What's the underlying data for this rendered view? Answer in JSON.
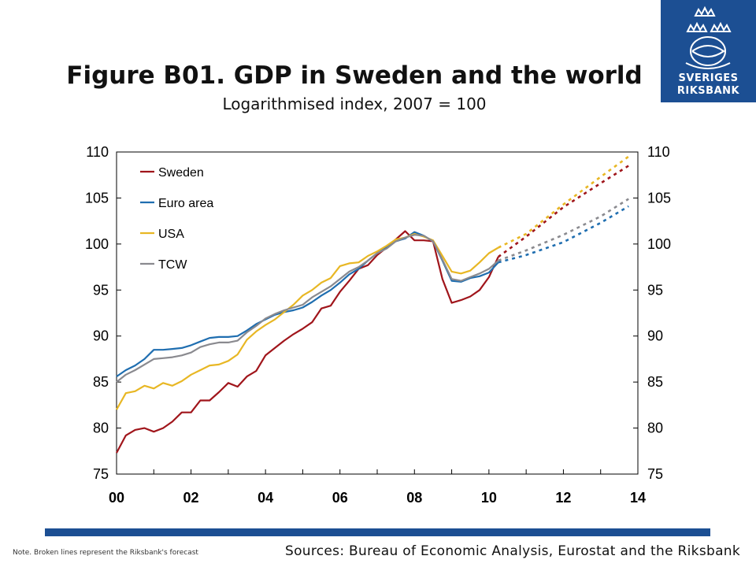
{
  "logo": {
    "line1": "SVERIGES",
    "line2": "RIKSBANK"
  },
  "note": "Note. Broken lines represent the Riksbank's forecast",
  "sources": "Sources: Bureau of Economic Analysis, Eurostat and the Riksbank",
  "colors": {
    "brand": "#1c4f93"
  },
  "chart_data": {
    "type": "line",
    "title": "Figure B01. GDP in Sweden and the world",
    "subtitle": "Logarithmised index, 2007 = 100",
    "xlim": [
      2000,
      2014
    ],
    "ylim": [
      75,
      110
    ],
    "xticks": [
      2000,
      2002,
      2004,
      2006,
      2008,
      2010,
      2012,
      2014
    ],
    "xticklabels": [
      "00",
      "02",
      "04",
      "06",
      "08",
      "10",
      "12",
      "14"
    ],
    "yticks": [
      75,
      80,
      85,
      90,
      95,
      100,
      105,
      110
    ],
    "yticklabels": [
      "75",
      "80",
      "85",
      "90",
      "95",
      "100",
      "105",
      "110"
    ],
    "legend_position": "top-left",
    "grid": false,
    "series": [
      {
        "name": "Sweden",
        "color": "#a0151b",
        "actual": [
          [
            2000,
            77.3
          ],
          [
            2000.25,
            79.2
          ],
          [
            2000.5,
            79.8
          ],
          [
            2000.75,
            80.0
          ],
          [
            2001,
            79.6
          ],
          [
            2001.25,
            80.0
          ],
          [
            2001.5,
            80.7
          ],
          [
            2001.75,
            81.7
          ],
          [
            2002,
            81.7
          ],
          [
            2002.25,
            83.0
          ],
          [
            2002.5,
            83.0
          ],
          [
            2002.75,
            83.9
          ],
          [
            2003,
            84.9
          ],
          [
            2003.25,
            84.5
          ],
          [
            2003.5,
            85.6
          ],
          [
            2003.75,
            86.2
          ],
          [
            2004,
            87.9
          ],
          [
            2004.25,
            88.7
          ],
          [
            2004.5,
            89.5
          ],
          [
            2004.75,
            90.2
          ],
          [
            2005,
            90.8
          ],
          [
            2005.25,
            91.5
          ],
          [
            2005.5,
            93.0
          ],
          [
            2005.75,
            93.3
          ],
          [
            2006,
            94.8
          ],
          [
            2006.25,
            96.0
          ],
          [
            2006.5,
            97.3
          ],
          [
            2006.75,
            97.7
          ],
          [
            2007,
            98.8
          ],
          [
            2007.25,
            99.6
          ],
          [
            2007.5,
            100.5
          ],
          [
            2007.75,
            101.4
          ],
          [
            2008,
            100.4
          ],
          [
            2008.25,
            100.4
          ],
          [
            2008.5,
            100.3
          ],
          [
            2008.75,
            96.2
          ],
          [
            2009,
            93.6
          ],
          [
            2009.25,
            93.9
          ],
          [
            2009.5,
            94.3
          ],
          [
            2009.75,
            95.0
          ],
          [
            2010,
            96.4
          ],
          [
            2010.25,
            98.6
          ]
        ],
        "forecast": [
          [
            2010.25,
            98.6
          ],
          [
            2011,
            100.8
          ],
          [
            2012,
            104.0
          ],
          [
            2013,
            106.6
          ],
          [
            2013.75,
            108.5
          ]
        ]
      },
      {
        "name": "Euro area",
        "color": "#1f6eb0",
        "actual": [
          [
            2000,
            85.6
          ],
          [
            2000.25,
            86.3
          ],
          [
            2000.5,
            86.8
          ],
          [
            2000.75,
            87.5
          ],
          [
            2001,
            88.5
          ],
          [
            2001.25,
            88.5
          ],
          [
            2001.5,
            88.6
          ],
          [
            2001.75,
            88.7
          ],
          [
            2002,
            89.0
          ],
          [
            2002.25,
            89.4
          ],
          [
            2002.5,
            89.8
          ],
          [
            2002.75,
            89.9
          ],
          [
            2003,
            89.9
          ],
          [
            2003.25,
            90.0
          ],
          [
            2003.5,
            90.6
          ],
          [
            2003.75,
            91.3
          ],
          [
            2004,
            91.8
          ],
          [
            2004.25,
            92.3
          ],
          [
            2004.5,
            92.6
          ],
          [
            2004.75,
            92.8
          ],
          [
            2005,
            93.1
          ],
          [
            2005.25,
            93.7
          ],
          [
            2005.5,
            94.4
          ],
          [
            2005.75,
            95.0
          ],
          [
            2006,
            95.8
          ],
          [
            2006.25,
            96.7
          ],
          [
            2006.5,
            97.3
          ],
          [
            2006.75,
            98.2
          ],
          [
            2007,
            99.0
          ],
          [
            2007.25,
            99.6
          ],
          [
            2007.5,
            100.3
          ],
          [
            2007.75,
            100.6
          ],
          [
            2008,
            101.3
          ],
          [
            2008.25,
            100.9
          ],
          [
            2008.5,
            100.3
          ],
          [
            2008.75,
            98.2
          ],
          [
            2009,
            96.0
          ],
          [
            2009.25,
            95.9
          ],
          [
            2009.5,
            96.3
          ],
          [
            2009.75,
            96.5
          ],
          [
            2010,
            96.9
          ],
          [
            2010.25,
            98.0
          ]
        ],
        "forecast": [
          [
            2010.25,
            98.0
          ],
          [
            2011,
            98.8
          ],
          [
            2012,
            100.2
          ],
          [
            2013,
            102.3
          ],
          [
            2013.75,
            104.1
          ]
        ]
      },
      {
        "name": "USA",
        "color": "#e8b724",
        "actual": [
          [
            2000,
            82.0
          ],
          [
            2000.25,
            83.8
          ],
          [
            2000.5,
            84.0
          ],
          [
            2000.75,
            84.6
          ],
          [
            2001,
            84.3
          ],
          [
            2001.25,
            84.9
          ],
          [
            2001.5,
            84.6
          ],
          [
            2001.75,
            85.1
          ],
          [
            2002,
            85.8
          ],
          [
            2002.25,
            86.3
          ],
          [
            2002.5,
            86.8
          ],
          [
            2002.75,
            86.9
          ],
          [
            2003,
            87.3
          ],
          [
            2003.25,
            88.0
          ],
          [
            2003.5,
            89.6
          ],
          [
            2003.75,
            90.5
          ],
          [
            2004,
            91.2
          ],
          [
            2004.25,
            91.8
          ],
          [
            2004.5,
            92.6
          ],
          [
            2004.75,
            93.4
          ],
          [
            2005,
            94.4
          ],
          [
            2005.25,
            95.0
          ],
          [
            2005.5,
            95.8
          ],
          [
            2005.75,
            96.3
          ],
          [
            2006,
            97.6
          ],
          [
            2006.25,
            97.9
          ],
          [
            2006.5,
            98.0
          ],
          [
            2006.75,
            98.7
          ],
          [
            2007,
            99.2
          ],
          [
            2007.25,
            99.8
          ],
          [
            2007.5,
            100.5
          ],
          [
            2007.75,
            100.7
          ],
          [
            2008,
            101.1
          ],
          [
            2008.25,
            100.8
          ],
          [
            2008.5,
            100.4
          ],
          [
            2008.75,
            98.7
          ],
          [
            2009,
            97.0
          ],
          [
            2009.25,
            96.8
          ],
          [
            2009.5,
            97.1
          ],
          [
            2009.75,
            98.0
          ],
          [
            2010,
            99.0
          ],
          [
            2010.25,
            99.6
          ]
        ],
        "forecast": [
          [
            2010.25,
            99.6
          ],
          [
            2011,
            101.1
          ],
          [
            2012,
            104.3
          ],
          [
            2013,
            107.3
          ],
          [
            2013.75,
            109.5
          ]
        ]
      },
      {
        "name": "TCW",
        "color": "#8a8a8f",
        "actual": [
          [
            2000,
            85.0
          ],
          [
            2000.25,
            85.8
          ],
          [
            2000.5,
            86.3
          ],
          [
            2000.75,
            86.9
          ],
          [
            2001,
            87.5
          ],
          [
            2001.25,
            87.6
          ],
          [
            2001.5,
            87.7
          ],
          [
            2001.75,
            87.9
          ],
          [
            2002,
            88.2
          ],
          [
            2002.25,
            88.8
          ],
          [
            2002.5,
            89.1
          ],
          [
            2002.75,
            89.3
          ],
          [
            2003,
            89.3
          ],
          [
            2003.25,
            89.5
          ],
          [
            2003.5,
            90.4
          ],
          [
            2003.75,
            91.1
          ],
          [
            2004,
            91.9
          ],
          [
            2004.25,
            92.4
          ],
          [
            2004.5,
            92.8
          ],
          [
            2004.75,
            93.1
          ],
          [
            2005,
            93.4
          ],
          [
            2005.25,
            94.2
          ],
          [
            2005.5,
            94.8
          ],
          [
            2005.75,
            95.4
          ],
          [
            2006,
            96.2
          ],
          [
            2006.25,
            97.0
          ],
          [
            2006.5,
            97.5
          ],
          [
            2006.75,
            98.2
          ],
          [
            2007,
            99.0
          ],
          [
            2007.25,
            99.5
          ],
          [
            2007.5,
            100.3
          ],
          [
            2007.75,
            100.7
          ],
          [
            2008,
            101.0
          ],
          [
            2008.25,
            100.9
          ],
          [
            2008.5,
            100.3
          ],
          [
            2008.75,
            98.3
          ],
          [
            2009,
            96.2
          ],
          [
            2009.25,
            96.0
          ],
          [
            2009.5,
            96.4
          ],
          [
            2009.75,
            96.8
          ],
          [
            2010,
            97.3
          ],
          [
            2010.25,
            98.2
          ]
        ],
        "forecast": [
          [
            2010.25,
            98.2
          ],
          [
            2011,
            99.3
          ],
          [
            2012,
            101.0
          ],
          [
            2013,
            103.0
          ],
          [
            2013.75,
            104.9
          ]
        ]
      }
    ]
  }
}
